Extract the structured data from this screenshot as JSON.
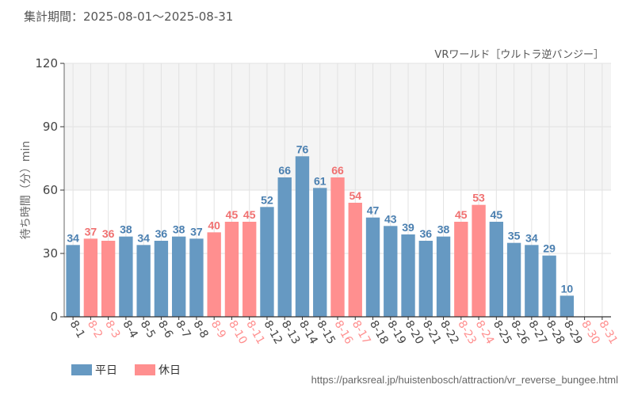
{
  "header": {
    "period": "集計期間：2025-08-01～2025-08-31"
  },
  "legend": [
    {
      "label": "平日",
      "color": "#6699c2"
    },
    {
      "label": "休日",
      "color": "#ff8f8f"
    }
  ],
  "footer": {
    "source": "https://parksreal.jp/huistenbosch/attraction/vr_reverse_bungee.html"
  },
  "colors": {
    "weekday": "#6699c2",
    "holiday": "#ff8f8f",
    "weekday_text": "#4a7fb0",
    "holiday_text": "#f07070",
    "band": "#f4f4f4",
    "grid": "#e2e2e2"
  },
  "chart_data": {
    "type": "bar",
    "title": "VRワールド［ウルトラ逆バンジー］",
    "xlabel": "",
    "ylabel": "待ち時間（分）min",
    "ylim": [
      0,
      120
    ],
    "yticks": [
      "0",
      "30",
      "60",
      "90",
      "120"
    ],
    "grid": true,
    "legend_position": "bottom-left",
    "categories": [
      "8-1",
      "8-2",
      "8-3",
      "8-4",
      "8-5",
      "8-6",
      "8-7",
      "8-8",
      "8-9",
      "8-10",
      "8-11",
      "8-12",
      "8-13",
      "8-14",
      "8-15",
      "8-16",
      "8-17",
      "8-18",
      "8-19",
      "8-20",
      "8-21",
      "8-22",
      "8-23",
      "8-24",
      "8-25",
      "8-26",
      "8-27",
      "8-28",
      "8-29",
      "8-30",
      "8-31"
    ],
    "day_type": [
      "平日",
      "休日",
      "休日",
      "平日",
      "平日",
      "平日",
      "平日",
      "平日",
      "休日",
      "休日",
      "休日",
      "平日",
      "平日",
      "平日",
      "平日",
      "休日",
      "休日",
      "平日",
      "平日",
      "平日",
      "平日",
      "平日",
      "休日",
      "休日",
      "平日",
      "平日",
      "平日",
      "平日",
      "平日",
      "休日",
      "休日"
    ],
    "values": [
      34,
      37,
      36,
      38,
      34,
      36,
      38,
      37,
      40,
      45,
      45,
      52,
      66,
      76,
      61,
      66,
      54,
      47,
      43,
      39,
      36,
      38,
      45,
      53,
      45,
      35,
      34,
      29,
      10,
      null,
      null
    ]
  }
}
